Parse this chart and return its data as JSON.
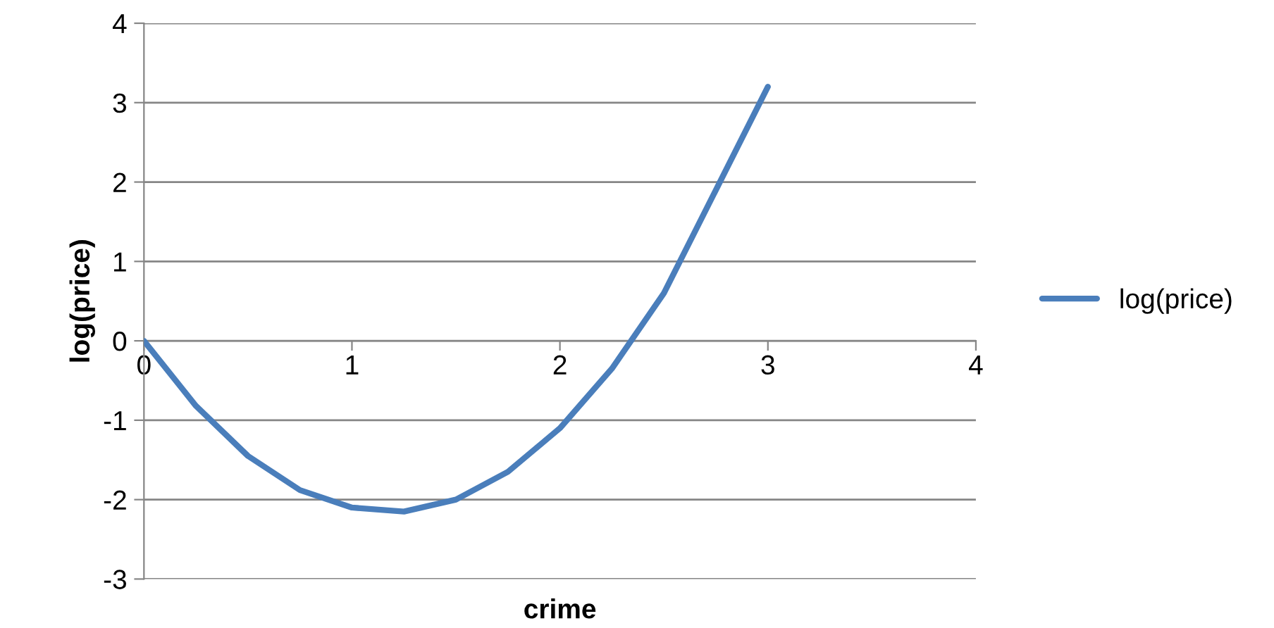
{
  "chart_data": {
    "type": "line",
    "xlabel": "crime",
    "ylabel": "log(price)",
    "x": [
      0,
      0.25,
      0.5,
      0.75,
      1,
      1.25,
      1.5,
      1.75,
      2,
      2.25,
      2.5,
      2.75,
      3
    ],
    "series": [
      {
        "name": "log(price)",
        "color": "#4a7ebb",
        "values": [
          0,
          -0.82,
          -1.45,
          -1.88,
          -2.1,
          -2.15,
          -2.0,
          -1.65,
          -1.1,
          -0.35,
          0.6,
          1.9,
          3.2
        ]
      }
    ],
    "xlim": [
      0,
      4
    ],
    "xticks": [
      0,
      1,
      2,
      3,
      4
    ],
    "ylim": [
      -3,
      4
    ],
    "yticks": [
      -3,
      -2,
      -1,
      0,
      1,
      2,
      3,
      4
    ],
    "grid": "y",
    "legend": "right",
    "marker": "none",
    "line_style": "solid"
  }
}
